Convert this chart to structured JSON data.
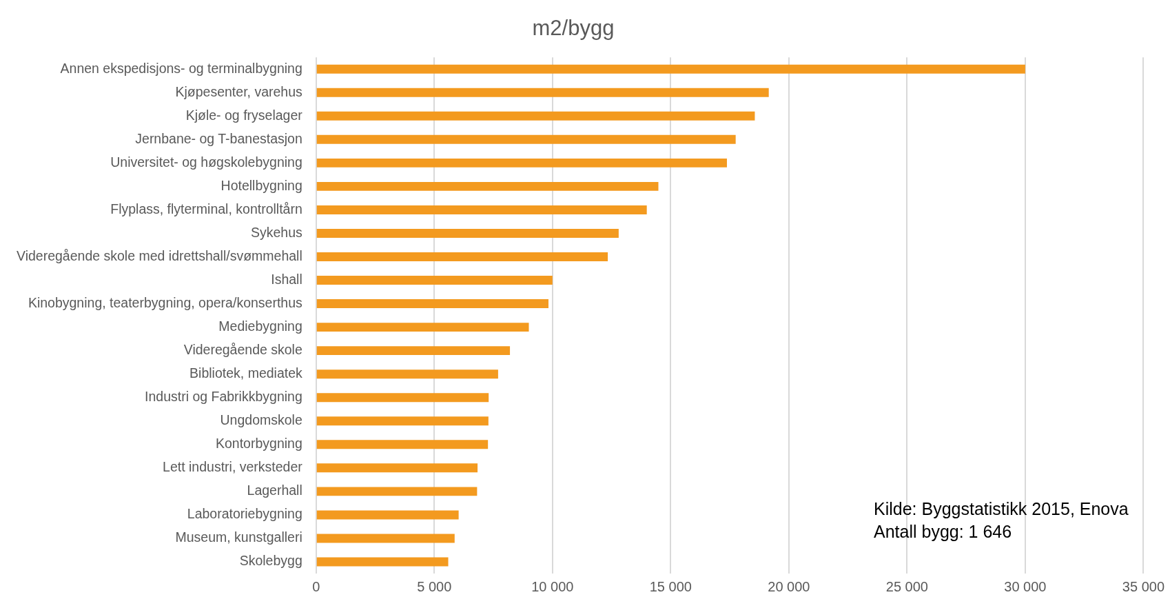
{
  "chart_data": {
    "type": "bar",
    "orientation": "horizontal",
    "title": "m2/bygg",
    "categories": [
      "Annen ekspedisjons- og terminalbygning",
      "Kjøpesenter, varehus",
      "Kjøle- og fryselager",
      "Jernbane- og T-banestasjon",
      "Universitet- og høgskolebygning",
      "Hotellbygning",
      "Flyplass, flyterminal, kontrolltårn",
      "Sykehus",
      "Videregående skole med idrettshall/svømmehall",
      "Ishall",
      "Kinobygning, teaterbygning, opera/konserthus",
      "Mediebygning",
      "Videregående skole",
      "Bibliotek, mediatek",
      "Industri og Fabrikkbygning",
      "Ungdomskole",
      "Kontorbygning",
      "Lett industri, verksteder",
      "Lagerhall",
      "Laboratoriebygning",
      "Museum, kunstgalleri",
      "Skolebygg"
    ],
    "values": [
      30000,
      19150,
      18560,
      17750,
      17380,
      14480,
      13990,
      12800,
      12340,
      10000,
      9830,
      9000,
      8200,
      7700,
      7300,
      7290,
      7270,
      6830,
      6810,
      6030,
      5860,
      5590
    ],
    "color": "#f39a1f",
    "xlim": [
      0,
      35000
    ],
    "xticks": [
      0,
      {
        "value": 5000,
        "label": "5 000"
      },
      {
        "value": 10000,
        "label": "10 000"
      },
      {
        "value": 15000,
        "label": "15 000"
      },
      {
        "value": 20000,
        "label": "20 000"
      },
      {
        "value": 25000,
        "label": "25 000"
      },
      {
        "value": 30000,
        "label": "30 000"
      },
      {
        "value": 35000,
        "label": "35 000"
      }
    ],
    "grid": "x",
    "annotations": [
      "Kilde: Byggstatistikk 2015, Enova",
      "Antall bygg: 1 646"
    ]
  }
}
